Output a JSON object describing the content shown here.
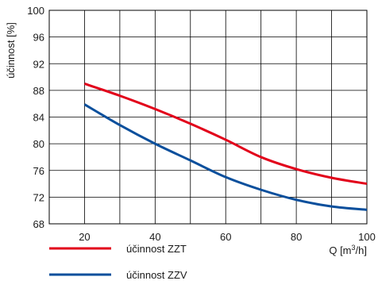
{
  "chart_data": {
    "type": "line",
    "title": "",
    "xlabel_prefix": "Q [m",
    "xlabel_sup": "3",
    "xlabel_suffix": "/h]",
    "ylabel": "účinnost [%]",
    "xlim": [
      10,
      100
    ],
    "ylim": [
      68,
      100
    ],
    "x_ticks": [
      20,
      40,
      60,
      80,
      100
    ],
    "y_ticks": [
      68,
      72,
      76,
      80,
      84,
      88,
      92,
      96,
      100
    ],
    "grid": true,
    "grid_x": [
      10,
      20,
      30,
      40,
      50,
      60,
      70,
      80,
      90,
      100
    ],
    "grid_y": [
      68,
      72,
      76,
      80,
      84,
      88,
      92,
      96,
      100
    ],
    "legend_position": "bottom",
    "series": [
      {
        "name": "účinnost ZZT",
        "color": "#e2001a",
        "x": [
          20,
          30,
          40,
          50,
          60,
          70,
          80,
          90,
          100
        ],
        "y": [
          89.0,
          87.2,
          85.2,
          83.0,
          80.6,
          78.0,
          76.2,
          74.9,
          74.0
        ]
      },
      {
        "name": "účinnost ZZV",
        "color": "#0a4f9c",
        "x": [
          20,
          30,
          40,
          50,
          60,
          70,
          80,
          90,
          100
        ],
        "y": [
          85.9,
          82.8,
          80.0,
          77.5,
          75.0,
          73.1,
          71.6,
          70.6,
          70.1
        ]
      }
    ]
  }
}
